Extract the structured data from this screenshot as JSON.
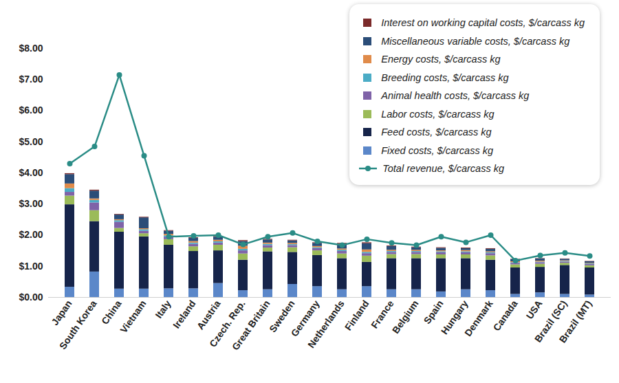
{
  "chart_data": {
    "type": "bar",
    "stacked": true,
    "legend": "upper right",
    "categories": [
      "Japan",
      "South Korea",
      "China",
      "Vietnam",
      "Italy",
      "Ireland",
      "Austria",
      "Czech. Rep.",
      "Great Britain",
      "Sweden",
      "Germany",
      "Netherlands",
      "Finland",
      "France",
      "Belgium",
      "Spain",
      "Hungary",
      "Denmark",
      "Canada",
      "USA",
      "Brazil (SC)",
      "Brazil (MT)"
    ],
    "ylim": [
      0,
      8
    ],
    "yticks": [
      {
        "value": 0,
        "label": "$0.00"
      },
      {
        "value": 1,
        "label": "$1.00"
      },
      {
        "value": 2,
        "label": "$2.00"
      },
      {
        "value": 3,
        "label": "$3.00"
      },
      {
        "value": 4,
        "label": "$4.00"
      },
      {
        "value": 5,
        "label": "$5.00"
      },
      {
        "value": 6,
        "label": "$6.00"
      },
      {
        "value": 7,
        "label": "$7.00"
      },
      {
        "value": 8,
        "label": "$8.00"
      }
    ],
    "series": [
      {
        "name": "Fixed costs, $/carcass kg",
        "type": "bar",
        "color": "#5b87c9",
        "values": [
          0.33,
          0.82,
          0.27,
          0.27,
          0.28,
          0.28,
          0.45,
          0.22,
          0.25,
          0.42,
          0.35,
          0.25,
          0.35,
          0.25,
          0.25,
          0.18,
          0.25,
          0.22,
          0.1,
          0.15,
          0.1,
          0.08
        ]
      },
      {
        "name": "Feed costs, $/carcass kg",
        "type": "bar",
        "color": "#16244a",
        "values": [
          2.65,
          1.62,
          1.83,
          1.68,
          1.4,
          1.2,
          1.05,
          0.98,
          1.22,
          1.03,
          1.0,
          1.0,
          0.78,
          1.0,
          1.0,
          1.07,
          1.0,
          0.98,
          0.85,
          0.82,
          0.93,
          0.87
        ]
      },
      {
        "name": "Labor costs, $/carcass kg",
        "type": "bar",
        "color": "#9bbb59",
        "values": [
          0.28,
          0.35,
          0.12,
          0.1,
          0.18,
          0.15,
          0.18,
          0.2,
          0.12,
          0.15,
          0.15,
          0.15,
          0.2,
          0.13,
          0.13,
          0.12,
          0.12,
          0.14,
          0.1,
          0.1,
          0.07,
          0.07
        ]
      },
      {
        "name": "Animal health costs, $/carcass kg",
        "type": "bar",
        "color": "#7f63a8",
        "values": [
          0.12,
          0.25,
          0.2,
          0.08,
          0.08,
          0.08,
          0.07,
          0.1,
          0.08,
          0.07,
          0.07,
          0.08,
          0.08,
          0.07,
          0.07,
          0.07,
          0.07,
          0.07,
          0.05,
          0.05,
          0.04,
          0.04
        ]
      },
      {
        "name": "Breeding costs, $/carcass kg",
        "type": "bar",
        "color": "#4bacc6",
        "values": [
          0.12,
          0.08,
          0.05,
          0.05,
          0.04,
          0.04,
          0.04,
          0.05,
          0.04,
          0.03,
          0.03,
          0.04,
          0.04,
          0.03,
          0.03,
          0.03,
          0.03,
          0.03,
          0.02,
          0.02,
          0.02,
          0.02
        ]
      },
      {
        "name": "Energy costs, $/carcass kg",
        "type": "bar",
        "color": "#e08b4a",
        "values": [
          0.15,
          0.05,
          0.03,
          0.03,
          0.05,
          0.05,
          0.05,
          0.1,
          0.04,
          0.04,
          0.04,
          0.04,
          0.08,
          0.04,
          0.04,
          0.03,
          0.04,
          0.03,
          0.03,
          0.03,
          0.02,
          0.02
        ]
      },
      {
        "name": "Miscellaneous variable costs, $/carcass kg",
        "type": "bar",
        "color": "#2b4d78",
        "values": [
          0.3,
          0.25,
          0.15,
          0.35,
          0.1,
          0.1,
          0.1,
          0.15,
          0.1,
          0.08,
          0.1,
          0.15,
          0.2,
          0.12,
          0.08,
          0.08,
          0.06,
          0.08,
          0.07,
          0.07,
          0.05,
          0.05
        ]
      },
      {
        "name": "Interest on working capital costs, $/carcass kg",
        "type": "bar",
        "color": "#7b2a2a",
        "values": [
          0.03,
          0.03,
          0.02,
          0.02,
          0.02,
          0.02,
          0.02,
          0.03,
          0.02,
          0.02,
          0.02,
          0.03,
          0.03,
          0.02,
          0.02,
          0.02,
          0.02,
          0.02,
          0.01,
          0.01,
          0.01,
          0.01
        ]
      },
      {
        "name": "Total revenue, $/carcass kg",
        "type": "line",
        "marker": "circle",
        "color": "#2a8c86",
        "values": [
          4.3,
          4.85,
          7.15,
          4.55,
          1.95,
          1.98,
          2.0,
          1.7,
          1.95,
          2.07,
          1.8,
          1.68,
          1.87,
          1.75,
          1.68,
          1.95,
          1.77,
          2.0,
          1.18,
          1.35,
          1.43,
          1.33
        ]
      }
    ]
  }
}
